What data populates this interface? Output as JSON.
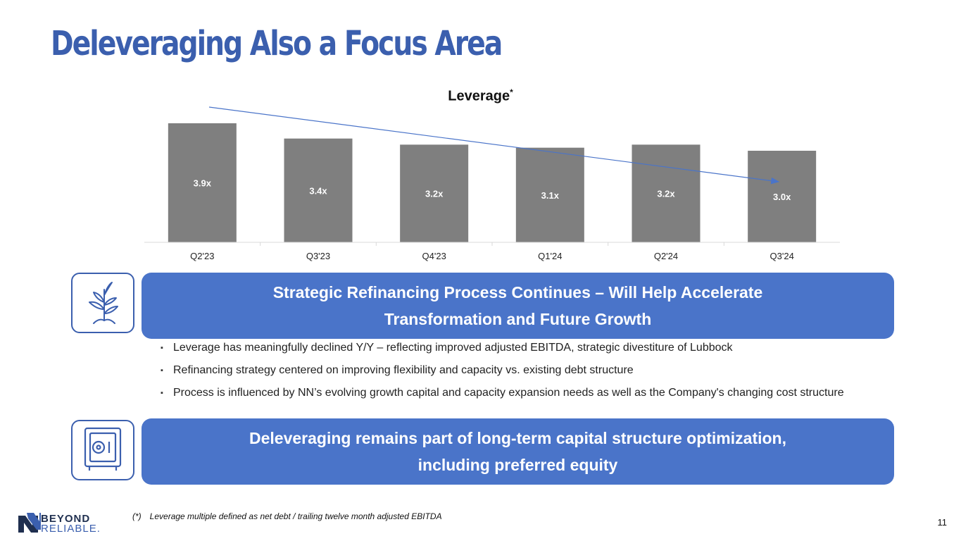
{
  "page": {
    "title": "Deleveraging Also a Focus Area",
    "page_number": "11"
  },
  "chart_data": {
    "type": "bar",
    "title": "Leverage",
    "title_superscript": "*",
    "categories": [
      "Q2'23",
      "Q3'23",
      "Q4'23",
      "Q1'24",
      "Q2'24",
      "Q3'24"
    ],
    "values": [
      3.9,
      3.4,
      3.2,
      3.1,
      3.2,
      3.0
    ],
    "data_labels": [
      "3.9x",
      "3.4x",
      "3.2x",
      "3.1x",
      "3.2x",
      "3.0x"
    ],
    "bar_color": "#7f7f7f",
    "trend_arrow_color": "#4a74c9",
    "xlabel": "",
    "ylabel": "",
    "ylim": [
      0,
      4.2
    ],
    "grid": false,
    "legend": "none"
  },
  "section1": {
    "icon": "plant-icon",
    "banner_line1": "Strategic Refinancing Process Continues – Will Help Accelerate",
    "banner_line2": "Transformation and Future Growth",
    "bullets": [
      "Leverage has meaningfully declined Y/Y – reflecting improved adjusted EBITDA, strategic divestiture of Lubbock",
      "Refinancing strategy centered on improving flexibility and capacity vs. existing debt structure",
      "Process is influenced by NN’s evolving growth capital and capacity expansion needs as well as the Company's changing cost structure"
    ]
  },
  "section2": {
    "icon": "safe-icon",
    "banner_line1": "Deleveraging remains part of long-term capital structure optimization,",
    "banner_line2": "including preferred equity"
  },
  "footnote": {
    "mark": "(*)",
    "text": "Leverage multiple defined as net debt / trailing twelve month adjusted EBITDA"
  },
  "logo": {
    "word1": "BEYOND",
    "word2": "RELIABLE."
  },
  "colors": {
    "brand_blue": "#3b5fae",
    "banner_blue": "#4a74c9"
  }
}
